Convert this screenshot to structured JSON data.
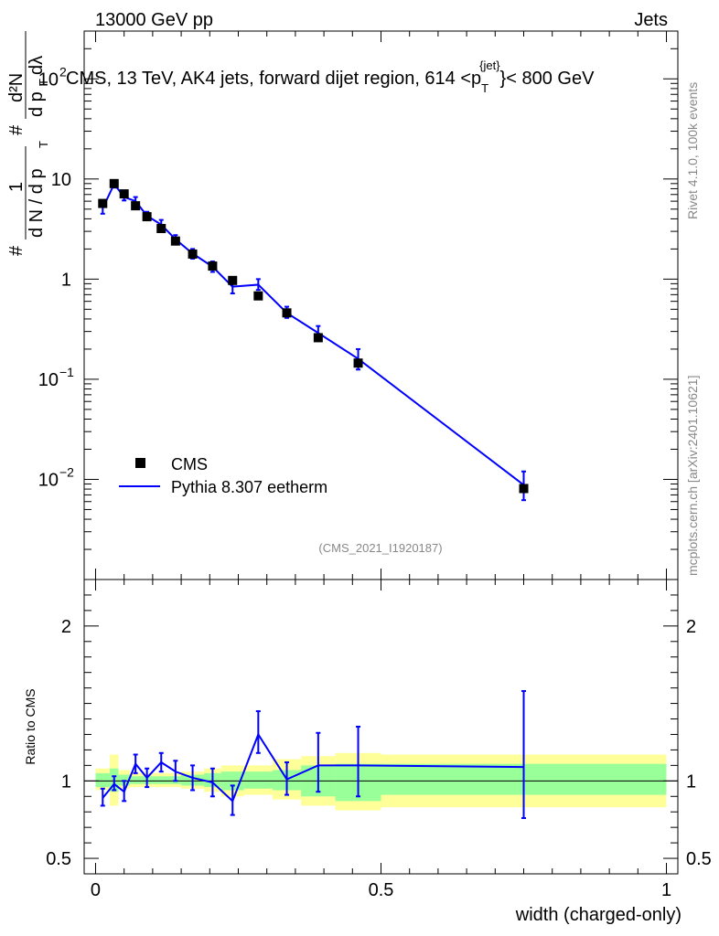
{
  "header": {
    "left": "13000 GeV pp",
    "right": "Jets"
  },
  "side": {
    "rivet": "Rivet 4.1.0,  100k events",
    "source": "mcplots.cern.ch [arXiv:2401.10621]"
  },
  "chart_data": {
    "type": "scatter",
    "title_parts": {
      "main": "CMS, 13 TeV, AK4 jets, forward dijet region, 614 <p",
      "sup": "{jet}",
      "sub": "T",
      "end": "}< 800 GeV"
    },
    "analysis_tag": "(CMS_2021_I1920187)",
    "xlabel": "width (charged-only)",
    "ylabel_top": {
      "prefix": "#",
      "frac1_num": "1",
      "frac1_den": "d N / d p",
      "frac1_den_sub": "T",
      "mid": "#",
      "frac2_num": "d²N",
      "frac2_den": "d p",
      "frac2_den_sub": "T",
      "frac2_end": " dλ"
    },
    "ylabel_ratio": "Ratio to CMS",
    "xlim": [
      -0.02,
      1.02
    ],
    "ylim_top": [
      0.001,
      300
    ],
    "ylim_ratio": [
      0.4,
      2.3
    ],
    "x_ticks": [
      {
        "v": 0,
        "label": "0"
      },
      {
        "v": 0.5,
        "label": "0.5"
      },
      {
        "v": 1,
        "label": "1"
      }
    ],
    "y_ticks_top": [
      {
        "v": 0.01,
        "base": "10",
        "exp": "−2"
      },
      {
        "v": 0.1,
        "base": "10",
        "exp": "−1"
      },
      {
        "v": 1,
        "base": "1",
        "exp": ""
      },
      {
        "v": 10,
        "base": "10",
        "exp": ""
      },
      {
        "v": 100,
        "base": "10",
        "exp": "2"
      }
    ],
    "y_ticks_ratio": [
      {
        "v": 0.5,
        "label": "0.5"
      },
      {
        "v": 1,
        "label": "1"
      },
      {
        "v": 2,
        "label": "2"
      }
    ],
    "legend": [
      {
        "name": "CMS",
        "marker": "square"
      },
      {
        "name": "Pythia 8.307 eetherm",
        "marker": "line"
      }
    ],
    "cms": [
      {
        "x": 0.0125,
        "y": 5.7
      },
      {
        "x": 0.0325,
        "y": 9.0
      },
      {
        "x": 0.05,
        "y": 7.1
      },
      {
        "x": 0.07,
        "y": 5.4
      },
      {
        "x": 0.09,
        "y": 4.2
      },
      {
        "x": 0.115,
        "y": 3.2
      },
      {
        "x": 0.14,
        "y": 2.4
      },
      {
        "x": 0.17,
        "y": 1.78
      },
      {
        "x": 0.205,
        "y": 1.35
      },
      {
        "x": 0.24,
        "y": 0.97
      },
      {
        "x": 0.285,
        "y": 0.68
      },
      {
        "x": 0.335,
        "y": 0.46
      },
      {
        "x": 0.39,
        "y": 0.26
      },
      {
        "x": 0.46,
        "y": 0.145
      },
      {
        "x": 0.75,
        "y": 0.0081
      }
    ],
    "pythia": [
      {
        "x": 0.0125,
        "y": 5.1,
        "lo": 4.5,
        "hi": 5.8
      },
      {
        "x": 0.0325,
        "y": 8.9,
        "lo": 8.2,
        "hi": 9.6
      },
      {
        "x": 0.05,
        "y": 6.6,
        "lo": 6.1,
        "hi": 7.2
      },
      {
        "x": 0.07,
        "y": 6.0,
        "lo": 5.5,
        "hi": 6.6
      },
      {
        "x": 0.09,
        "y": 4.3,
        "lo": 4.0,
        "hi": 4.7
      },
      {
        "x": 0.115,
        "y": 3.5,
        "lo": 3.2,
        "hi": 3.9
      },
      {
        "x": 0.14,
        "y": 2.5,
        "lo": 2.28,
        "hi": 2.75
      },
      {
        "x": 0.17,
        "y": 1.8,
        "lo": 1.6,
        "hi": 2.0
      },
      {
        "x": 0.205,
        "y": 1.33,
        "lo": 1.18,
        "hi": 1.5
      },
      {
        "x": 0.24,
        "y": 0.84,
        "lo": 0.72,
        "hi": 0.98
      },
      {
        "x": 0.285,
        "y": 0.88,
        "lo": 0.78,
        "hi": 1.0
      },
      {
        "x": 0.335,
        "y": 0.46,
        "lo": 0.41,
        "hi": 0.53
      },
      {
        "x": 0.39,
        "y": 0.29,
        "lo": 0.24,
        "hi": 0.34
      },
      {
        "x": 0.46,
        "y": 0.16,
        "lo": 0.125,
        "hi": 0.2
      },
      {
        "x": 0.75,
        "y": 0.0088,
        "lo": 0.0062,
        "hi": 0.012
      }
    ],
    "ratio": [
      {
        "x": 0.0125,
        "y": 0.89,
        "lo": 0.84,
        "hi": 0.95
      },
      {
        "x": 0.0325,
        "y": 0.98,
        "lo": 0.94,
        "hi": 1.03
      },
      {
        "x": 0.05,
        "y": 0.93,
        "lo": 0.87,
        "hi": 1.0
      },
      {
        "x": 0.07,
        "y": 1.11,
        "lo": 1.05,
        "hi": 1.17
      },
      {
        "x": 0.09,
        "y": 1.02,
        "lo": 0.96,
        "hi": 1.08
      },
      {
        "x": 0.115,
        "y": 1.12,
        "lo": 1.06,
        "hi": 1.18
      },
      {
        "x": 0.14,
        "y": 1.06,
        "lo": 1.0,
        "hi": 1.13
      },
      {
        "x": 0.17,
        "y": 1.02,
        "lo": 0.94,
        "hi": 1.1
      },
      {
        "x": 0.205,
        "y": 0.99,
        "lo": 0.9,
        "hi": 1.08
      },
      {
        "x": 0.24,
        "y": 0.87,
        "lo": 0.78,
        "hi": 0.97
      },
      {
        "x": 0.285,
        "y": 1.3,
        "lo": 1.18,
        "hi": 1.45
      },
      {
        "x": 0.335,
        "y": 1.01,
        "lo": 0.91,
        "hi": 1.12
      },
      {
        "x": 0.39,
        "y": 1.1,
        "lo": 0.93,
        "hi": 1.31
      },
      {
        "x": 0.46,
        "y": 1.1,
        "lo": 0.9,
        "hi": 1.35
      },
      {
        "x": 0.75,
        "y": 1.09,
        "lo": 0.76,
        "hi": 1.58
      }
    ],
    "bands": [
      {
        "x0": 0.0,
        "x1": 0.025,
        "g_lo": 0.96,
        "g_hi": 1.05,
        "y_lo": 0.94,
        "y_hi": 1.08
      },
      {
        "x0": 0.025,
        "x1": 0.04,
        "g_lo": 0.93,
        "g_hi": 1.08,
        "y_lo": 0.84,
        "y_hi": 1.17
      },
      {
        "x0": 0.04,
        "x1": 0.06,
        "g_lo": 0.97,
        "g_hi": 1.04,
        "y_lo": 0.95,
        "y_hi": 1.07
      },
      {
        "x0": 0.06,
        "x1": 0.08,
        "g_lo": 0.98,
        "g_hi": 1.03,
        "y_lo": 0.96,
        "y_hi": 1.05
      },
      {
        "x0": 0.08,
        "x1": 0.1,
        "g_lo": 0.98,
        "g_hi": 1.03,
        "y_lo": 0.96,
        "y_hi": 1.05
      },
      {
        "x0": 0.1,
        "x1": 0.13,
        "g_lo": 0.98,
        "g_hi": 1.03,
        "y_lo": 0.96,
        "y_hi": 1.05
      },
      {
        "x0": 0.13,
        "x1": 0.15,
        "g_lo": 0.98,
        "g_hi": 1.03,
        "y_lo": 0.96,
        "y_hi": 1.05
      },
      {
        "x0": 0.15,
        "x1": 0.19,
        "g_lo": 0.97,
        "g_hi": 1.04,
        "y_lo": 0.95,
        "y_hi": 1.06
      },
      {
        "x0": 0.19,
        "x1": 0.22,
        "g_lo": 0.96,
        "g_hi": 1.05,
        "y_lo": 0.93,
        "y_hi": 1.08
      },
      {
        "x0": 0.22,
        "x1": 0.26,
        "g_lo": 0.94,
        "g_hi": 1.06,
        "y_lo": 0.9,
        "y_hi": 1.1
      },
      {
        "x0": 0.26,
        "x1": 0.31,
        "g_lo": 0.95,
        "g_hi": 1.06,
        "y_lo": 0.91,
        "y_hi": 1.1
      },
      {
        "x0": 0.31,
        "x1": 0.36,
        "g_lo": 0.94,
        "g_hi": 1.07,
        "y_lo": 0.88,
        "y_hi": 1.14
      },
      {
        "x0": 0.36,
        "x1": 0.42,
        "g_lo": 0.9,
        "g_hi": 1.1,
        "y_lo": 0.84,
        "y_hi": 1.16
      },
      {
        "x0": 0.42,
        "x1": 0.5,
        "g_lo": 0.87,
        "g_hi": 1.11,
        "y_lo": 0.81,
        "y_hi": 1.18
      },
      {
        "x0": 0.5,
        "x1": 1.0,
        "g_lo": 0.91,
        "g_hi": 1.11,
        "y_lo": 0.83,
        "y_hi": 1.17
      }
    ],
    "colors": {
      "line": "#0000ff",
      "marker": "#000000",
      "green": "#99ff99",
      "yellow": "#ffff99"
    }
  }
}
